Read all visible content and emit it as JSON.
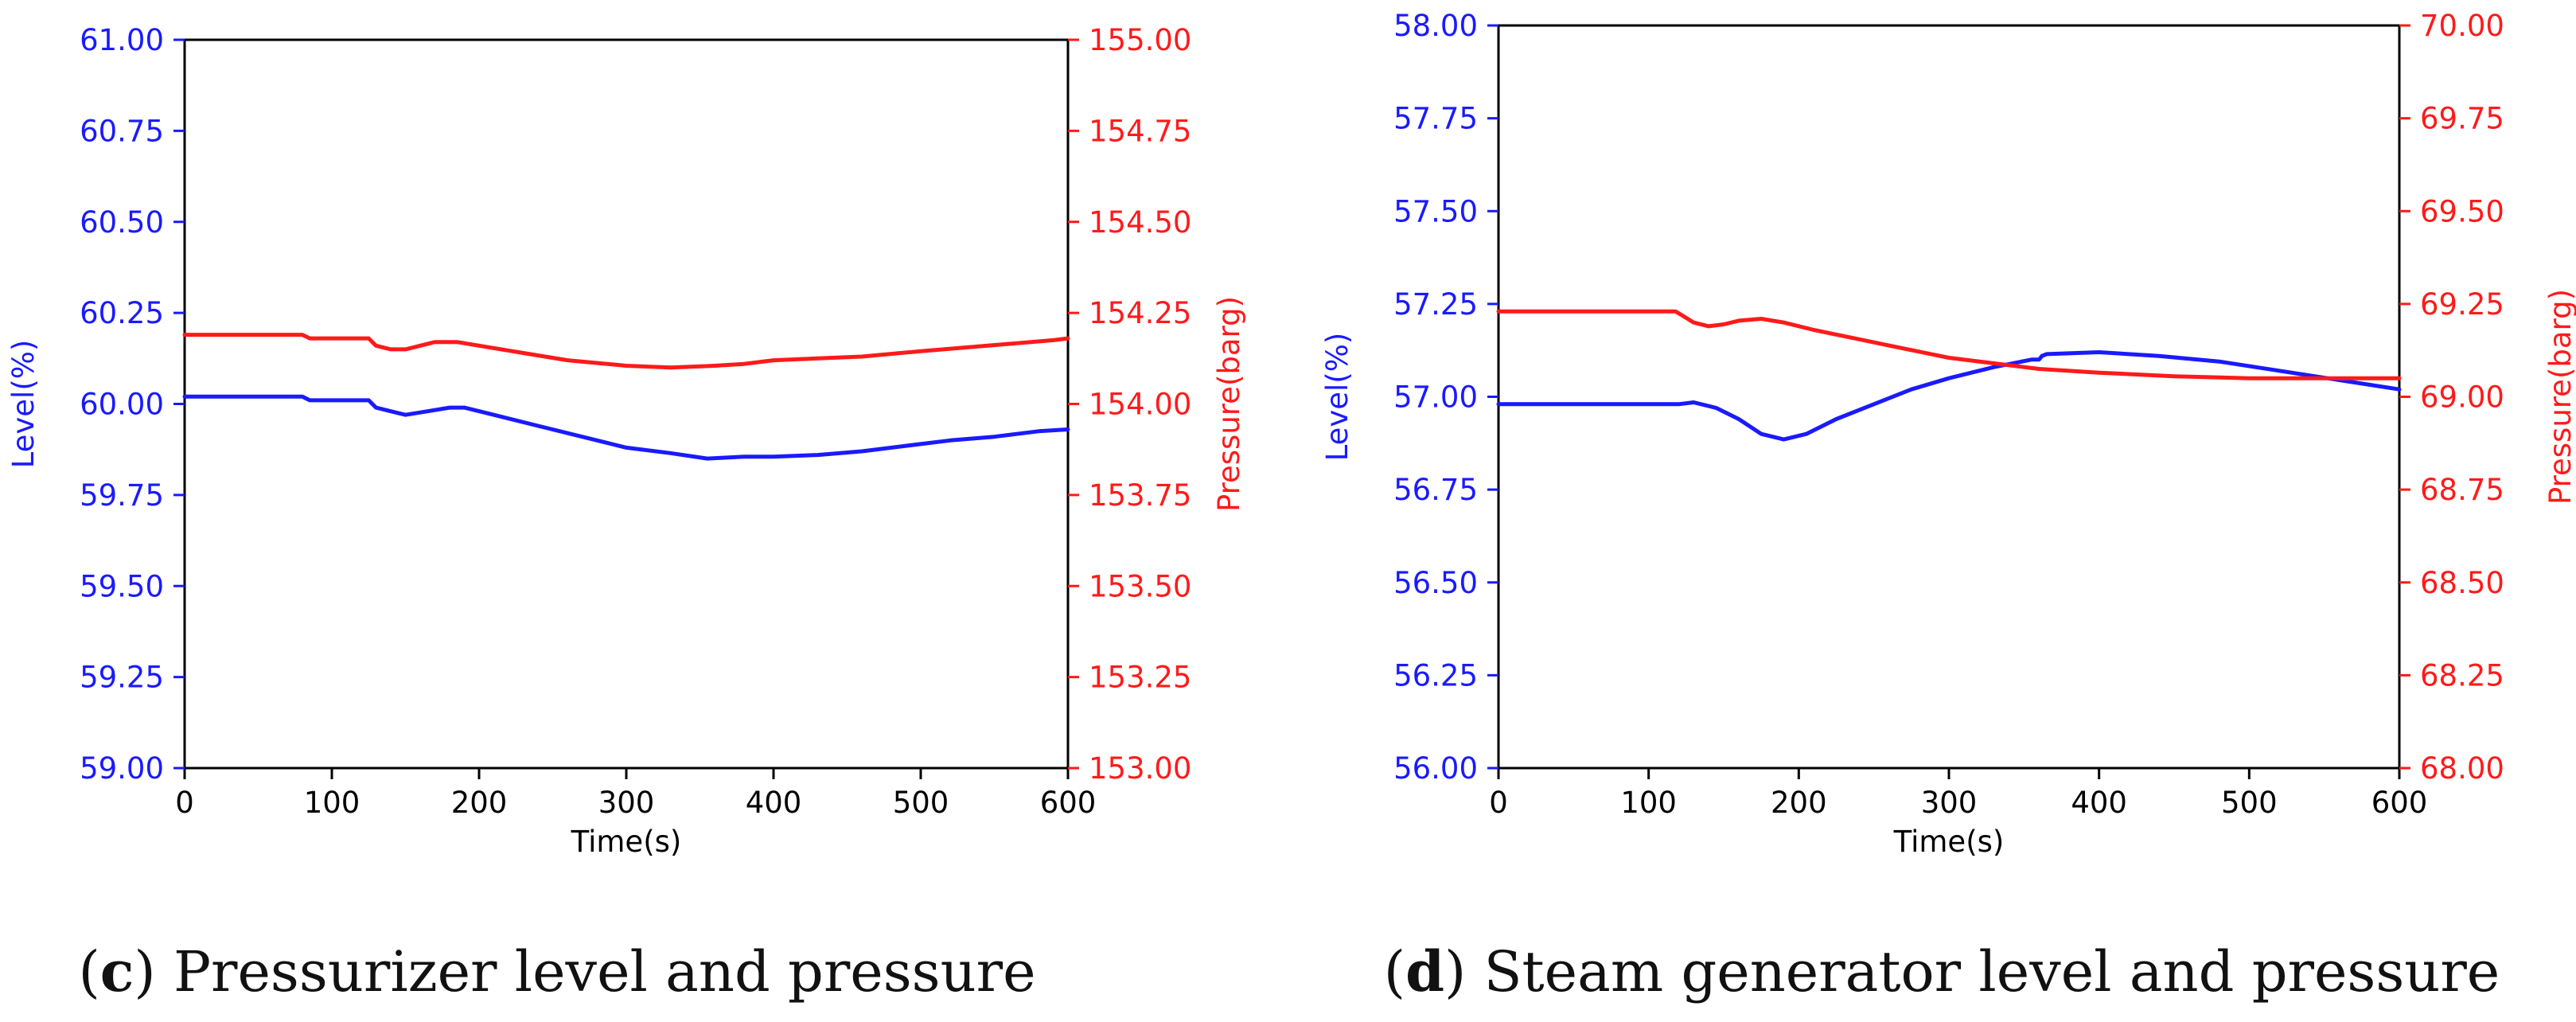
{
  "colors": {
    "level": "#1a1aff",
    "pressure": "#ff1a1a",
    "axes": "#000000"
  },
  "chart_data": [
    {
      "type": "line",
      "caption_letter": "c",
      "caption_text": " Pressurizer level and pressure",
      "xlabel": "Time(s)",
      "ylabel_left": "Level(%)",
      "ylabel_right": "Pressure(barg)",
      "xlim": [
        0,
        600
      ],
      "ylim_left": [
        59.0,
        61.0
      ],
      "ylim_right": [
        153.0,
        155.0
      ],
      "xticks": [
        "0",
        "100",
        "200",
        "300",
        "400",
        "500",
        "600"
      ],
      "yticks_left": [
        "59.00",
        "59.25",
        "59.50",
        "59.75",
        "60.00",
        "60.25",
        "60.50",
        "60.75",
        "61.00"
      ],
      "yticks_right": [
        "153.00",
        "153.25",
        "153.50",
        "153.75",
        "154.00",
        "154.25",
        "154.50",
        "154.75",
        "155.00"
      ],
      "series": [
        {
          "name": "Level(%)",
          "axis": "left",
          "x": [
            0,
            80,
            85,
            125,
            130,
            140,
            150,
            165,
            180,
            190,
            210,
            240,
            270,
            300,
            330,
            355,
            380,
            400,
            430,
            460,
            490,
            520,
            550,
            580,
            600
          ],
          "y": [
            60.02,
            60.02,
            60.01,
            60.01,
            59.99,
            59.98,
            59.97,
            59.98,
            59.99,
            59.99,
            59.97,
            59.94,
            59.91,
            59.88,
            59.865,
            59.85,
            59.855,
            59.855,
            59.86,
            59.87,
            59.885,
            59.9,
            59.91,
            59.925,
            59.93
          ]
        },
        {
          "name": "Pressure(barg)",
          "axis": "right",
          "x": [
            0,
            80,
            85,
            125,
            130,
            140,
            150,
            160,
            170,
            185,
            200,
            230,
            260,
            300,
            330,
            360,
            380,
            400,
            430,
            460,
            500,
            530,
            560,
            590,
            600
          ],
          "y": [
            154.19,
            154.19,
            154.18,
            154.18,
            154.16,
            154.15,
            154.15,
            154.16,
            154.17,
            154.17,
            154.16,
            154.14,
            154.12,
            154.105,
            154.1,
            154.105,
            154.11,
            154.12,
            154.125,
            154.13,
            154.145,
            154.155,
            154.165,
            154.175,
            154.18
          ]
        }
      ]
    },
    {
      "type": "line",
      "caption_letter": "d",
      "caption_text": " Steam generator level and pressure",
      "xlabel": "Time(s)",
      "ylabel_left": "Level(%)",
      "ylabel_right": "Pressure(barg)",
      "xlim": [
        0,
        600
      ],
      "ylim_left": [
        56.0,
        58.0
      ],
      "ylim_right": [
        68.0,
        70.0
      ],
      "xticks": [
        "0",
        "100",
        "200",
        "300",
        "400",
        "500",
        "600"
      ],
      "yticks_left": [
        "56.00",
        "56.25",
        "56.50",
        "56.75",
        "57.00",
        "57.25",
        "57.50",
        "57.75",
        "58.00"
      ],
      "yticks_right": [
        "68.00",
        "68.25",
        "68.50",
        "68.75",
        "69.00",
        "69.25",
        "69.50",
        "69.75",
        "70.00"
      ],
      "series": [
        {
          "name": "Level(%)",
          "axis": "left",
          "x": [
            0,
            60,
            120,
            130,
            145,
            160,
            175,
            190,
            205,
            225,
            250,
            275,
            300,
            330,
            355,
            360,
            362,
            365,
            400,
            440,
            480,
            520,
            560,
            600
          ],
          "y": [
            56.98,
            56.98,
            56.98,
            56.985,
            56.97,
            56.94,
            56.9,
            56.885,
            56.9,
            56.94,
            56.98,
            57.02,
            57.05,
            57.08,
            57.1,
            57.1,
            57.11,
            57.115,
            57.12,
            57.11,
            57.095,
            57.07,
            57.045,
            57.02
          ]
        },
        {
          "name": "Pressure(barg)",
          "axis": "right",
          "x": [
            0,
            60,
            118,
            122,
            130,
            140,
            150,
            160,
            175,
            190,
            210,
            240,
            270,
            300,
            330,
            360,
            400,
            450,
            500,
            550,
            600
          ],
          "y": [
            69.23,
            69.23,
            69.23,
            69.22,
            69.2,
            69.19,
            69.195,
            69.205,
            69.21,
            69.2,
            69.18,
            69.155,
            69.13,
            69.105,
            69.09,
            69.075,
            69.065,
            69.055,
            69.05,
            69.05,
            69.05
          ]
        }
      ]
    }
  ]
}
